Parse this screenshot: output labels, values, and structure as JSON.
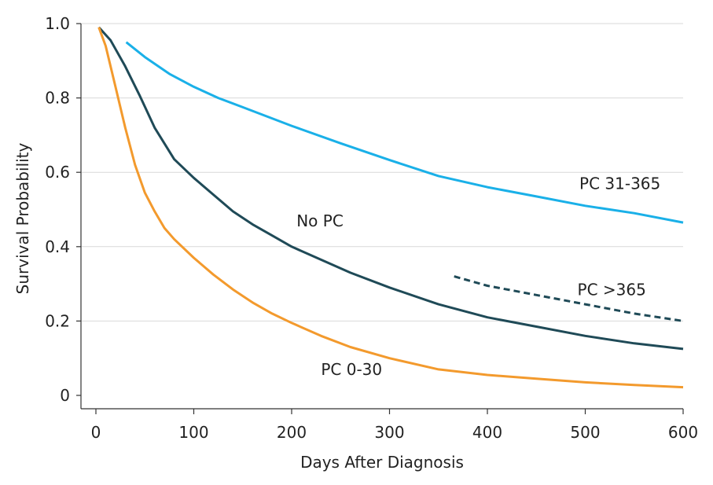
{
  "chart_data": {
    "type": "line",
    "title": "",
    "xlabel": "Days After Diagnosis",
    "ylabel": "Survival Probability",
    "xlim": [
      0,
      600
    ],
    "ylim": [
      0,
      1.0
    ],
    "x_ticks": [
      0,
      100,
      200,
      300,
      400,
      500,
      600
    ],
    "x_tick_labels": [
      "0",
      "100",
      "200",
      "300",
      "400",
      "500",
      "600"
    ],
    "y_ticks": [
      0,
      0.2,
      0.4,
      0.6,
      0.8,
      1.0
    ],
    "y_tick_labels": [
      "0",
      "0.2",
      "0.4",
      "0.6",
      "0.8",
      "1.0"
    ],
    "grid": "horizontal",
    "series": [
      {
        "name": "PC 31-365",
        "color": "#1ab0e8",
        "style": "solid",
        "x": [
          31,
          50,
          75,
          100,
          125,
          150,
          200,
          250,
          300,
          350,
          400,
          450,
          500,
          550,
          600
        ],
        "y": [
          0.95,
          0.91,
          0.865,
          0.83,
          0.8,
          0.775,
          0.725,
          0.678,
          0.633,
          0.59,
          0.56,
          0.535,
          0.51,
          0.49,
          0.465
        ]
      },
      {
        "name": "No PC",
        "color": "#1f4a57",
        "style": "solid",
        "x": [
          3,
          15,
          30,
          45,
          60,
          80,
          100,
          120,
          140,
          160,
          180,
          200,
          230,
          260,
          300,
          350,
          400,
          450,
          500,
          550,
          600
        ],
        "y": [
          0.99,
          0.955,
          0.885,
          0.805,
          0.72,
          0.635,
          0.585,
          0.54,
          0.495,
          0.46,
          0.43,
          0.4,
          0.365,
          0.33,
          0.29,
          0.245,
          0.21,
          0.185,
          0.16,
          0.14,
          0.125
        ]
      },
      {
        "name": "PC >365",
        "color": "#1f4a57",
        "style": "dashed",
        "x": [
          366,
          400,
          450,
          500,
          550,
          600
        ],
        "y": [
          0.32,
          0.295,
          0.27,
          0.245,
          0.22,
          0.2
        ]
      },
      {
        "name": "PC 0-30",
        "color": "#f39a2d",
        "style": "solid",
        "x": [
          3,
          10,
          20,
          30,
          40,
          50,
          60,
          70,
          80,
          100,
          120,
          140,
          160,
          180,
          200,
          230,
          260,
          300,
          350,
          400,
          450,
          500,
          550,
          600
        ],
        "y": [
          0.99,
          0.94,
          0.83,
          0.72,
          0.62,
          0.545,
          0.495,
          0.45,
          0.42,
          0.37,
          0.325,
          0.285,
          0.25,
          0.22,
          0.195,
          0.16,
          0.13,
          0.1,
          0.07,
          0.055,
          0.045,
          0.035,
          0.028,
          0.022
        ]
      }
    ],
    "annotations": [
      {
        "text": "PC 31-365",
        "x": 494,
        "y": 0.555
      },
      {
        "text": "No PC",
        "x": 205,
        "y": 0.455
      },
      {
        "text": "PC >365",
        "x": 492,
        "y": 0.27
      },
      {
        "text": "PC 0-30",
        "x": 230,
        "y": 0.055
      }
    ]
  }
}
